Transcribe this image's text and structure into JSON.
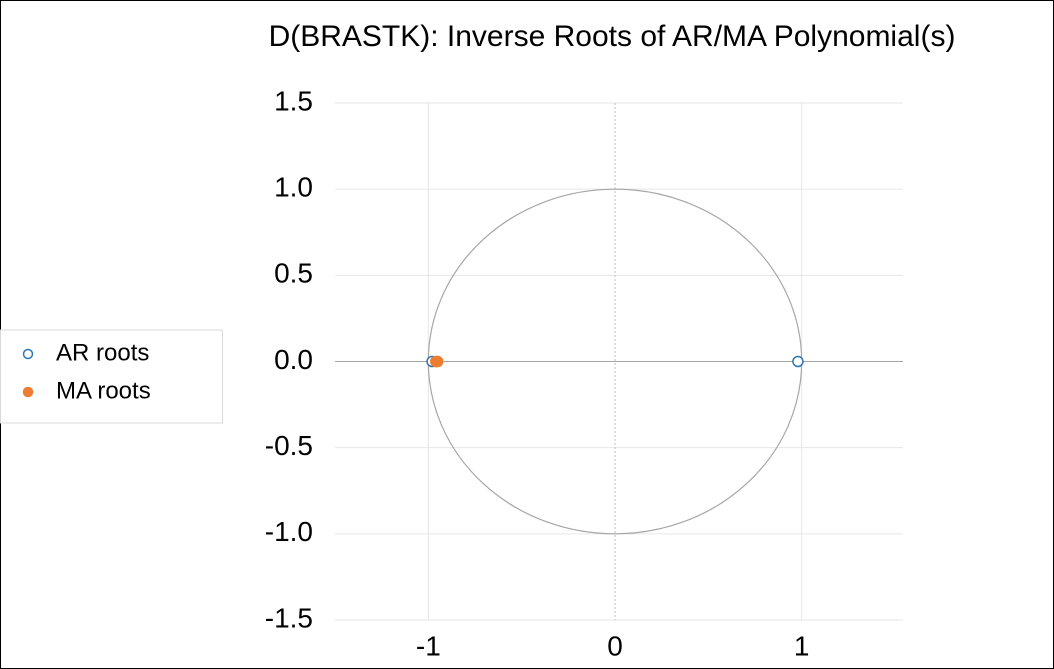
{
  "chart_data": {
    "type": "scatter",
    "title": "D(BRASTK): Inverse Roots of AR/MA Polynomial(s)",
    "series": [
      {
        "name": "AR roots",
        "color": "#2e75b6",
        "marker": "open",
        "x": [
          -0.98,
          0.98
        ],
        "values": [
          0,
          0
        ]
      },
      {
        "name": "MA roots",
        "color": "#ed7d31",
        "marker": "filled",
        "x": [
          -0.96,
          -0.95
        ],
        "values": [
          0,
          0
        ]
      }
    ],
    "xlim": [
      -1.5,
      1.5
    ],
    "ylim": [
      -1.5,
      1.5
    ],
    "xticks": [
      -1,
      0,
      1
    ],
    "yticks": [
      1.5,
      {
        "value": 1.0,
        "label": "1.0"
      },
      0.5,
      {
        "value": 0.0,
        "label": "0.0"
      },
      -0.5,
      {
        "value": -1.0,
        "label": "-1.0"
      },
      -1.5
    ],
    "grid": true,
    "unit_circle": true,
    "legend": "left"
  }
}
